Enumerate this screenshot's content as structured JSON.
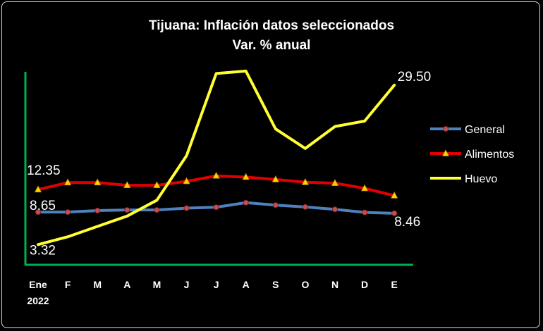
{
  "chart_data": {
    "type": "line",
    "title": "Tijuana: Inflación datos seleccionados",
    "subtitle": "Var. % anual",
    "categories": [
      "Ene",
      "F",
      "M",
      "A",
      "M",
      "J",
      "J",
      "A",
      "S",
      "O",
      "N",
      "D",
      "E"
    ],
    "category_sublabel": "2022",
    "ylim": [
      0,
      34
    ],
    "grid": false,
    "legend_position": "right",
    "series": [
      {
        "name": "General",
        "color": "#4f81bd",
        "marker": "circle",
        "marker_color": "#c0504d",
        "values": [
          8.65,
          8.65,
          8.9,
          9.0,
          9.0,
          9.3,
          9.45,
          10.2,
          9.8,
          9.5,
          9.1,
          8.6,
          8.46
        ]
      },
      {
        "name": "Alimentos",
        "color": "#e00000",
        "marker": "triangle",
        "marker_color": "#ffd700",
        "values": [
          12.35,
          13.5,
          13.5,
          13.05,
          13.05,
          13.7,
          14.6,
          14.4,
          14.0,
          13.55,
          13.4,
          12.55,
          11.35
        ]
      },
      {
        "name": "Huevo",
        "color": "#ffff33",
        "marker": "none",
        "values": [
          3.32,
          4.6,
          6.3,
          8.0,
          10.6,
          17.9,
          31.4,
          31.8,
          22.3,
          19.1,
          22.7,
          23.6,
          29.5
        ]
      }
    ],
    "data_labels": [
      {
        "text": "12.35",
        "series": 1,
        "index": 0
      },
      {
        "text": "8.65",
        "series": 0,
        "index": 0
      },
      {
        "text": "3.32",
        "series": 2,
        "index": 0
      },
      {
        "text": "29.50",
        "series": 2,
        "index": 12
      },
      {
        "text": "8.46",
        "series": 0,
        "index": 12
      }
    ]
  },
  "colors": {
    "background": "#000000",
    "axis": "#00b050",
    "text": "#ffffff"
  }
}
